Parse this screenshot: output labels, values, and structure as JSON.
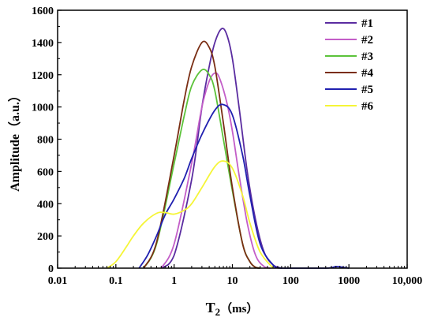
{
  "chart_data": {
    "type": "line",
    "xlabel": "T",
    "xlabel_sub": "2",
    "xlabel_unit": "（ms）",
    "ylabel": "Amplitude（a.u.）",
    "xscale": "log",
    "xlim": [
      0.01,
      10000
    ],
    "ylim": [
      0,
      1600
    ],
    "xticks": [
      0.01,
      0.1,
      1,
      10,
      100,
      1000,
      10000
    ],
    "xtick_labels": [
      "0.01",
      "0.1",
      "1",
      "10",
      "100",
      "1000",
      "10,000"
    ],
    "yticks": [
      0,
      200,
      400,
      600,
      800,
      1000,
      1200,
      1400,
      1600
    ],
    "ytick_labels": [
      "0",
      "200",
      "400",
      "600",
      "800",
      "1000",
      "1200",
      "1400",
      "1600"
    ],
    "grid": false,
    "legend_position": "top-right",
    "series": [
      {
        "name": "#1",
        "color": "#5a2ca0",
        "x": [
          0.6,
          1,
          2,
          3,
          4,
          5,
          6.5,
          8,
          10,
          13,
          18,
          25,
          35,
          50,
          70
        ],
        "y": [
          0,
          80,
          550,
          1000,
          1250,
          1400,
          1485,
          1450,
          1300,
          1000,
          600,
          300,
          100,
          20,
          0
        ]
      },
      {
        "name": "#2",
        "color": "#c35ec8",
        "x": [
          0.6,
          1,
          2,
          3,
          4,
          5,
          6,
          8,
          10,
          13,
          18,
          25,
          35,
          45
        ],
        "y": [
          0,
          150,
          650,
          1000,
          1160,
          1210,
          1180,
          1030,
          850,
          580,
          280,
          80,
          10,
          0
        ]
      },
      {
        "name": "#3",
        "color": "#5cc33a",
        "x": [
          0.3,
          0.5,
          1,
          1.5,
          2,
          3,
          4,
          5,
          7,
          10,
          15,
          20,
          25,
          30
        ],
        "y": [
          0,
          150,
          650,
          950,
          1130,
          1230,
          1200,
          1100,
          800,
          480,
          150,
          40,
          5,
          0
        ]
      },
      {
        "name": "#4",
        "color": "#7a2e14",
        "x": [
          0.3,
          0.5,
          1,
          1.5,
          2,
          3,
          4,
          5,
          7,
          10,
          15,
          20,
          25,
          30
        ],
        "y": [
          0,
          160,
          700,
          1050,
          1250,
          1400,
          1370,
          1250,
          900,
          500,
          150,
          40,
          5,
          0
        ]
      },
      {
        "name": "#5",
        "color": "#2020b0",
        "x": [
          0.25,
          0.35,
          0.5,
          0.7,
          1,
          1.5,
          2,
          3,
          5,
          7,
          10,
          15,
          20,
          30,
          50,
          70,
          400,
          600,
          800,
          1000
        ],
        "y": [
          0,
          80,
          200,
          330,
          430,
          560,
          680,
          830,
          980,
          1015,
          950,
          700,
          450,
          150,
          20,
          0,
          0,
          10,
          5,
          0
        ]
      },
      {
        "name": "#6",
        "color": "#f5f537",
        "x": [
          0.07,
          0.1,
          0.15,
          0.2,
          0.3,
          0.5,
          0.7,
          1,
          1.5,
          2,
          3,
          5,
          7,
          10,
          15,
          20,
          30,
          50
        ],
        "y": [
          0,
          40,
          130,
          200,
          280,
          340,
          345,
          335,
          360,
          400,
          500,
          630,
          665,
          620,
          450,
          280,
          100,
          0
        ]
      }
    ]
  }
}
